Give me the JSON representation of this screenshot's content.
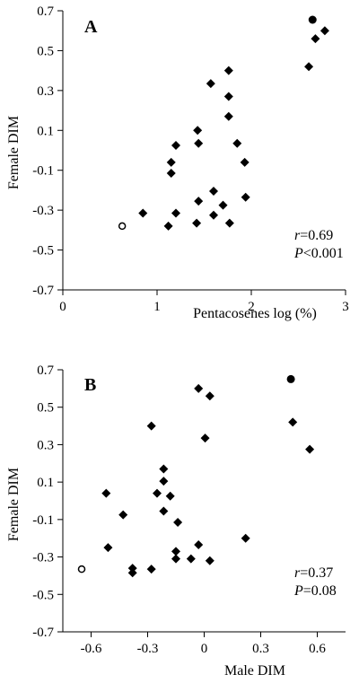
{
  "chart_data": [
    {
      "type": "scatter",
      "panel_label": "A",
      "xlabel": "Pentacosenes  log  (%)",
      "ylabel": "Female DIM",
      "xlim": [
        0,
        3
      ],
      "ylim": [
        -0.7,
        0.7
      ],
      "xticks": [
        0,
        1,
        2,
        3
      ],
      "xtick_labels": [
        "0",
        "1",
        "2",
        "3"
      ],
      "yticks": [
        0.7,
        0.5,
        0.3,
        0.1,
        -0.1,
        -0.3,
        -0.5,
        -0.7
      ],
      "ytick_labels": [
        "0.7",
        "0.5",
        "0.3",
        "0.1",
        "-0.1",
        "-0.3",
        "-0.5",
        "-0.7"
      ],
      "stats": {
        "r_symbol": "r",
        "r_value": "=0.69",
        "p_symbol": "P",
        "p_value": "<0.001"
      },
      "series": [
        {
          "marker": "diamond",
          "points": [
            [
              0.85,
              -0.315
            ],
            [
              1.12,
              -0.38
            ],
            [
              1.15,
              -0.06
            ],
            [
              1.15,
              -0.115
            ],
            [
              1.2,
              0.025
            ],
            [
              1.2,
              -0.315
            ],
            [
              1.42,
              -0.365
            ],
            [
              1.43,
              0.1
            ],
            [
              1.44,
              0.035
            ],
            [
              1.44,
              -0.255
            ],
            [
              1.57,
              0.335
            ],
            [
              1.6,
              -0.205
            ],
            [
              1.6,
              -0.325
            ],
            [
              1.7,
              -0.275
            ],
            [
              1.76,
              0.4
            ],
            [
              1.76,
              0.27
            ],
            [
              1.76,
              0.17
            ],
            [
              1.77,
              -0.365
            ],
            [
              1.85,
              0.035
            ],
            [
              1.93,
              -0.06
            ],
            [
              1.94,
              -0.235
            ],
            [
              2.61,
              0.42
            ],
            [
              2.68,
              0.56
            ],
            [
              2.78,
              0.6
            ]
          ]
        },
        {
          "marker": "open-circle",
          "points": [
            [
              0.63,
              -0.38
            ]
          ]
        },
        {
          "marker": "filled-circle",
          "points": [
            [
              2.65,
              0.655
            ]
          ]
        }
      ]
    },
    {
      "type": "scatter",
      "panel_label": "B",
      "xlabel": "Male DIM",
      "ylabel": "Female DIM",
      "xlim": [
        -0.75,
        0.75
      ],
      "ylim": [
        -0.7,
        0.7
      ],
      "xticks": [
        -0.6,
        -0.3,
        0,
        0.3,
        0.6
      ],
      "xtick_labels": [
        "-0.6",
        "-0.3",
        "0",
        "0.3",
        "0.6"
      ],
      "yticks": [
        0.7,
        0.5,
        0.3,
        0.1,
        -0.1,
        -0.3,
        -0.5,
        -0.7
      ],
      "ytick_labels": [
        "0.7",
        "0.5",
        "0.3",
        "0.1",
        "-0.1",
        "-0.3",
        "-0.5",
        "-0.7"
      ],
      "stats": {
        "r_symbol": "r",
        "r_value": "=0.37",
        "p_symbol": "P",
        "p_value": "=0.08"
      },
      "series": [
        {
          "marker": "diamond",
          "points": [
            [
              -0.52,
              0.04
            ],
            [
              -0.51,
              -0.25
            ],
            [
              -0.43,
              -0.075
            ],
            [
              -0.38,
              -0.36
            ],
            [
              -0.38,
              -0.385
            ],
            [
              -0.28,
              0.4
            ],
            [
              -0.28,
              -0.365
            ],
            [
              -0.25,
              0.04
            ],
            [
              -0.215,
              0.17
            ],
            [
              -0.215,
              0.105
            ],
            [
              -0.215,
              -0.055
            ],
            [
              -0.18,
              0.025
            ],
            [
              -0.14,
              -0.115
            ],
            [
              -0.15,
              -0.27
            ],
            [
              -0.15,
              -0.31
            ],
            [
              -0.07,
              -0.31
            ],
            [
              -0.03,
              0.6
            ],
            [
              -0.03,
              -0.235
            ],
            [
              0.005,
              0.335
            ],
            [
              0.03,
              0.56
            ],
            [
              0.03,
              -0.32
            ],
            [
              0.22,
              -0.2
            ],
            [
              0.47,
              0.42
            ],
            [
              0.56,
              0.275
            ]
          ]
        },
        {
          "marker": "open-circle",
          "points": [
            [
              -0.65,
              -0.365
            ]
          ]
        },
        {
          "marker": "filled-circle",
          "points": [
            [
              0.46,
              0.65
            ]
          ]
        }
      ]
    }
  ]
}
